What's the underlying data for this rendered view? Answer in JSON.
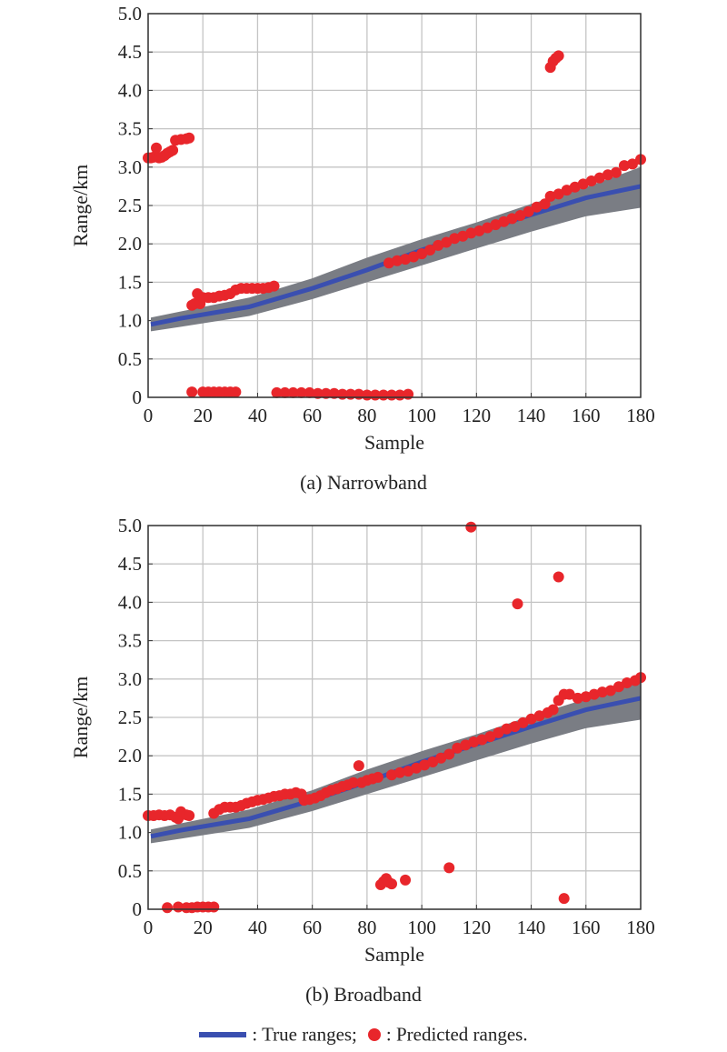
{
  "chart_data": [
    {
      "type": "scatter",
      "title": "",
      "caption": "(a) Narrowband",
      "xlabel": "Sample",
      "ylabel": "Range/km",
      "xlim": [
        0,
        180
      ],
      "ylim": [
        0,
        5.0
      ],
      "xticks": [
        "0",
        "20",
        "40",
        "60",
        "80",
        "100",
        "120",
        "140",
        "160",
        "180"
      ],
      "yticks": [
        "0",
        "0.5",
        "1.0",
        "1.5",
        "2.0",
        "2.5",
        "3.0",
        "3.5",
        "4.0",
        "4.5",
        "5.0"
      ],
      "grid": true,
      "true_range": {
        "x": [
          1,
          12,
          37,
          60,
          80,
          100,
          120,
          140,
          160,
          180
        ],
        "y": [
          0.95,
          1.03,
          1.18,
          1.42,
          1.66,
          1.92,
          2.15,
          2.38,
          2.6,
          2.75
        ]
      },
      "band_upper": {
        "x": [
          1,
          12,
          37,
          60,
          80,
          100,
          120,
          140,
          160,
          180
        ],
        "y": [
          1.04,
          1.12,
          1.3,
          1.55,
          1.82,
          2.06,
          2.28,
          2.52,
          2.74,
          3.0
        ]
      },
      "band_lower": {
        "x": [
          1,
          12,
          37,
          60,
          80,
          100,
          120,
          140,
          160,
          180
        ],
        "y": [
          0.86,
          0.92,
          1.06,
          1.28,
          1.5,
          1.72,
          1.94,
          2.16,
          2.36,
          2.47
        ]
      },
      "predicted": [
        [
          0,
          3.12
        ],
        [
          1,
          3.12
        ],
        [
          2,
          3.13
        ],
        [
          3,
          3.25
        ],
        [
          4,
          3.12
        ],
        [
          5,
          3.13
        ],
        [
          6,
          3.15
        ],
        [
          7,
          3.18
        ],
        [
          8,
          3.2
        ],
        [
          9,
          3.22
        ],
        [
          10,
          3.35
        ],
        [
          12,
          3.36
        ],
        [
          14,
          3.37
        ],
        [
          15,
          3.38
        ],
        [
          16,
          1.2
        ],
        [
          17,
          1.22
        ],
        [
          18,
          1.35
        ],
        [
          19,
          1.22
        ],
        [
          20,
          1.3
        ],
        [
          22,
          1.3
        ],
        [
          24,
          1.3
        ],
        [
          26,
          1.32
        ],
        [
          28,
          1.33
        ],
        [
          30,
          1.35
        ],
        [
          32,
          1.4
        ],
        [
          34,
          1.42
        ],
        [
          36,
          1.42
        ],
        [
          38,
          1.42
        ],
        [
          40,
          1.42
        ],
        [
          42,
          1.42
        ],
        [
          44,
          1.43
        ],
        [
          46,
          1.45
        ],
        [
          16,
          0.07
        ],
        [
          20,
          0.07
        ],
        [
          22,
          0.07
        ],
        [
          24,
          0.07
        ],
        [
          26,
          0.07
        ],
        [
          28,
          0.07
        ],
        [
          30,
          0.07
        ],
        [
          32,
          0.07
        ],
        [
          47,
          0.06
        ],
        [
          50,
          0.06
        ],
        [
          53,
          0.06
        ],
        [
          56,
          0.06
        ],
        [
          59,
          0.06
        ],
        [
          62,
          0.05
        ],
        [
          65,
          0.05
        ],
        [
          68,
          0.05
        ],
        [
          71,
          0.04
        ],
        [
          74,
          0.04
        ],
        [
          77,
          0.04
        ],
        [
          80,
          0.03
        ],
        [
          83,
          0.03
        ],
        [
          86,
          0.03
        ],
        [
          89,
          0.03
        ],
        [
          92,
          0.03
        ],
        [
          95,
          0.04
        ],
        [
          88,
          1.75
        ],
        [
          91,
          1.78
        ],
        [
          94,
          1.8
        ],
        [
          97,
          1.83
        ],
        [
          100,
          1.87
        ],
        [
          103,
          1.92
        ],
        [
          106,
          1.98
        ],
        [
          109,
          2.02
        ],
        [
          112,
          2.07
        ],
        [
          115,
          2.1
        ],
        [
          118,
          2.14
        ],
        [
          121,
          2.17
        ],
        [
          124,
          2.21
        ],
        [
          127,
          2.25
        ],
        [
          130,
          2.29
        ],
        [
          133,
          2.33
        ],
        [
          136,
          2.37
        ],
        [
          139,
          2.42
        ],
        [
          142,
          2.48
        ],
        [
          145,
          2.52
        ],
        [
          147,
          2.62
        ],
        [
          150,
          2.65
        ],
        [
          153,
          2.7
        ],
        [
          156,
          2.74
        ],
        [
          159,
          2.78
        ],
        [
          162,
          2.82
        ],
        [
          165,
          2.86
        ],
        [
          168,
          2.9
        ],
        [
          171,
          2.93
        ],
        [
          174,
          3.02
        ],
        [
          177,
          3.04
        ],
        [
          180,
          3.1
        ],
        [
          147,
          4.3
        ],
        [
          148,
          4.38
        ],
        [
          149,
          4.42
        ],
        [
          150,
          4.45
        ]
      ]
    },
    {
      "type": "scatter",
      "title": "",
      "caption": "(b) Broadband",
      "xlabel": "Sample",
      "ylabel": "Range/km",
      "xlim": [
        0,
        180
      ],
      "ylim": [
        0,
        5.0
      ],
      "xticks": [
        "0",
        "20",
        "40",
        "60",
        "80",
        "100",
        "120",
        "140",
        "160",
        "180"
      ],
      "yticks": [
        "0",
        "0.5",
        "1.0",
        "1.5",
        "2.0",
        "2.5",
        "3.0",
        "3.5",
        "4.0",
        "4.5",
        "5.0"
      ],
      "grid": true,
      "true_range": {
        "x": [
          1,
          12,
          37,
          60,
          80,
          100,
          120,
          140,
          160,
          180
        ],
        "y": [
          0.95,
          1.03,
          1.18,
          1.42,
          1.66,
          1.92,
          2.15,
          2.38,
          2.6,
          2.75
        ]
      },
      "band_upper": {
        "x": [
          1,
          12,
          37,
          60,
          80,
          100,
          120,
          140,
          160,
          180
        ],
        "y": [
          1.04,
          1.12,
          1.3,
          1.55,
          1.82,
          2.06,
          2.28,
          2.52,
          2.74,
          3.0
        ]
      },
      "band_lower": {
        "x": [
          1,
          12,
          37,
          60,
          80,
          100,
          120,
          140,
          160,
          180
        ],
        "y": [
          0.86,
          0.92,
          1.06,
          1.28,
          1.5,
          1.72,
          1.94,
          2.16,
          2.36,
          2.47
        ]
      },
      "predicted": [
        [
          0,
          1.22
        ],
        [
          2,
          1.22
        ],
        [
          4,
          1.23
        ],
        [
          6,
          1.22
        ],
        [
          8,
          1.23
        ],
        [
          10,
          1.2
        ],
        [
          11,
          1.18
        ],
        [
          12,
          1.27
        ],
        [
          14,
          1.23
        ],
        [
          15,
          1.22
        ],
        [
          7,
          0.02
        ],
        [
          11,
          0.03
        ],
        [
          14,
          0.02
        ],
        [
          16,
          0.02
        ],
        [
          18,
          0.03
        ],
        [
          20,
          0.03
        ],
        [
          22,
          0.03
        ],
        [
          24,
          0.03
        ],
        [
          24,
          1.25
        ],
        [
          26,
          1.3
        ],
        [
          28,
          1.33
        ],
        [
          30,
          1.33
        ],
        [
          32,
          1.33
        ],
        [
          34,
          1.35
        ],
        [
          36,
          1.38
        ],
        [
          38,
          1.4
        ],
        [
          40,
          1.42
        ],
        [
          42,
          1.43
        ],
        [
          44,
          1.45
        ],
        [
          46,
          1.47
        ],
        [
          48,
          1.48
        ],
        [
          50,
          1.5
        ],
        [
          52,
          1.5
        ],
        [
          54,
          1.52
        ],
        [
          56,
          1.5
        ],
        [
          57,
          1.42
        ],
        [
          59,
          1.43
        ],
        [
          61,
          1.45
        ],
        [
          63,
          1.48
        ],
        [
          65,
          1.52
        ],
        [
          67,
          1.55
        ],
        [
          69,
          1.57
        ],
        [
          71,
          1.6
        ],
        [
          73,
          1.62
        ],
        [
          75,
          1.65
        ],
        [
          77,
          1.87
        ],
        [
          78,
          1.65
        ],
        [
          80,
          1.68
        ],
        [
          82,
          1.7
        ],
        [
          84,
          1.72
        ],
        [
          85,
          0.32
        ],
        [
          86,
          0.36
        ],
        [
          87,
          0.4
        ],
        [
          88,
          0.35
        ],
        [
          89,
          0.33
        ],
        [
          94,
          0.38
        ],
        [
          110,
          0.54
        ],
        [
          152,
          0.14
        ],
        [
          89,
          1.75
        ],
        [
          92,
          1.78
        ],
        [
          95,
          1.8
        ],
        [
          98,
          1.84
        ],
        [
          101,
          1.88
        ],
        [
          104,
          1.92
        ],
        [
          107,
          1.97
        ],
        [
          110,
          2.02
        ],
        [
          113,
          2.1
        ],
        [
          116,
          2.14
        ],
        [
          119,
          2.18
        ],
        [
          122,
          2.21
        ],
        [
          125,
          2.25
        ],
        [
          128,
          2.3
        ],
        [
          131,
          2.35
        ],
        [
          134,
          2.38
        ],
        [
          137,
          2.43
        ],
        [
          140,
          2.48
        ],
        [
          143,
          2.52
        ],
        [
          146,
          2.56
        ],
        [
          148,
          2.6
        ],
        [
          150,
          2.72
        ],
        [
          152,
          2.8
        ],
        [
          154,
          2.8
        ],
        [
          157,
          2.75
        ],
        [
          160,
          2.77
        ],
        [
          163,
          2.8
        ],
        [
          166,
          2.83
        ],
        [
          169,
          2.85
        ],
        [
          172,
          2.9
        ],
        [
          175,
          2.95
        ],
        [
          178,
          2.98
        ],
        [
          180,
          3.02
        ],
        [
          118,
          4.98
        ],
        [
          135,
          3.98
        ],
        [
          150,
          4.33
        ]
      ]
    }
  ],
  "legend": {
    "true_label": ": True ranges;",
    "pred_label": ": Predicted ranges."
  },
  "colors": {
    "true": "#3a4fb0",
    "band": "#7a7d84",
    "pred": "#e8262b",
    "grid": "#c4c4c4"
  }
}
